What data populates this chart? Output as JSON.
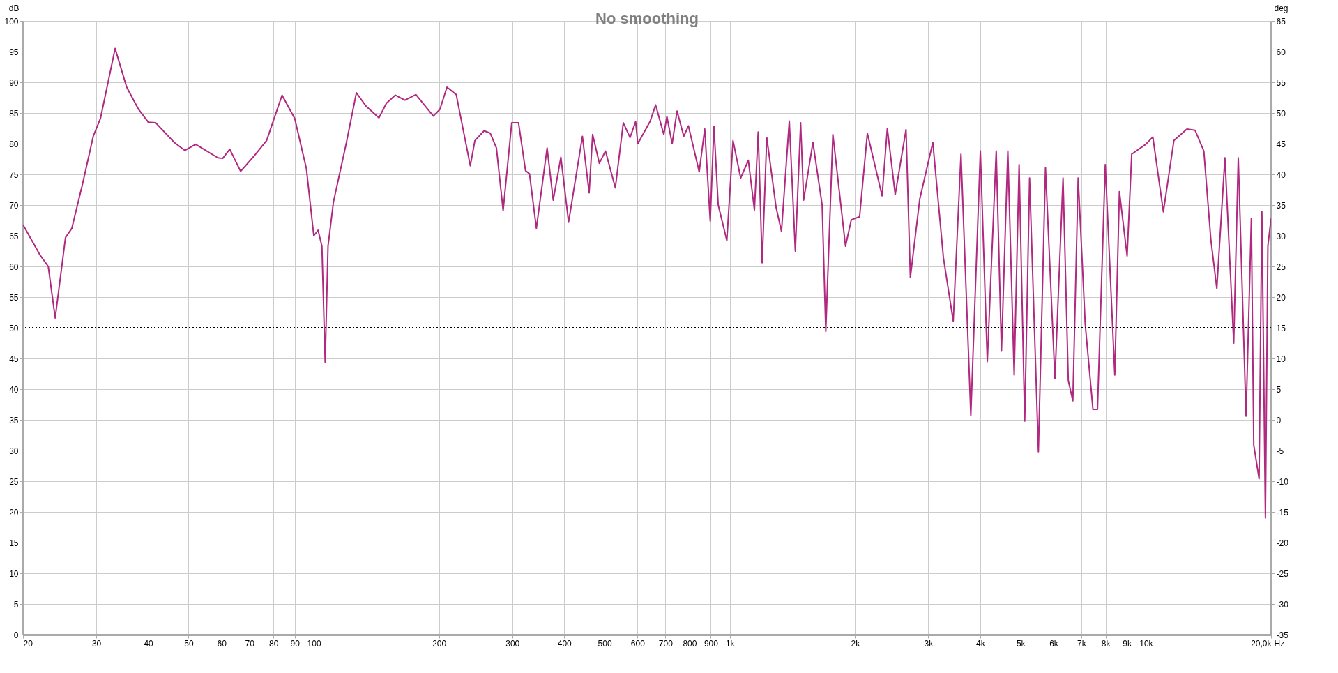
{
  "chart_data": {
    "type": "line",
    "title": "No smoothing",
    "xlabel": "Hz",
    "ylabel": "dB",
    "y2label": "deg",
    "log": "x",
    "grid": true,
    "xlim": [
      20,
      20000
    ],
    "xticks": [
      20,
      30,
      40,
      50,
      60,
      70,
      80,
      90,
      100,
      200,
      300,
      400,
      500,
      600,
      700,
      800,
      900,
      {
        "value": 1000,
        "label": "1k"
      },
      {
        "value": 2000,
        "label": "2k"
      },
      {
        "value": 3000,
        "label": "3k"
      },
      {
        "value": 4000,
        "label": "4k"
      },
      {
        "value": 5000,
        "label": "5k"
      },
      {
        "value": 6000,
        "label": "6k"
      },
      {
        "value": 7000,
        "label": "7k"
      },
      {
        "value": 8000,
        "label": "8k"
      },
      {
        "value": 9000,
        "label": "9k"
      },
      {
        "value": 10000,
        "label": "10k"
      },
      {
        "value": 20000,
        "label": "20,0k"
      }
    ],
    "ylim": [
      0,
      100
    ],
    "yticks": [
      0,
      5,
      10,
      15,
      20,
      25,
      30,
      35,
      40,
      45,
      50,
      55,
      60,
      65,
      70,
      75,
      80,
      85,
      90,
      95,
      100
    ],
    "y2lim": [
      -35,
      65
    ],
    "y2ticks": [
      -35,
      -30,
      -25,
      -20,
      -15,
      -10,
      -5,
      0,
      5,
      10,
      15,
      20,
      25,
      30,
      35,
      40,
      45,
      50,
      55,
      60,
      65
    ],
    "ref_lines": [
      {
        "axis": "y",
        "value": 50,
        "color": "#000000",
        "line_style": "dotted"
      }
    ],
    "series": [
      {
        "color": "#b0287f",
        "x": [
          20,
          22,
          23,
          23.9,
          25.3,
          26.2,
          27.8,
          29.5,
          30.7,
          33.3,
          35.5,
          37.9,
          40,
          41.7,
          46.2,
          49,
          52,
          58.8,
          60.4,
          62.8,
          66.7,
          72.1,
          77,
          83.9,
          90,
          96,
          100,
          102.4,
          104.6,
          106.5,
          108.2,
          111.5,
          119.8,
          126.6,
          133.6,
          143.4,
          149.5,
          157,
          165.6,
          176,
          193.8,
          201,
          209,
          220,
          237.8,
          243.9,
          256.7,
          265.6,
          274.8,
          285.2,
          299.1,
          310.6,
          322.8,
          330,
          342.8,
          363.8,
          376.3,
          392.6,
          409.7,
          442.3,
          459.1,
          468,
          485.8,
          502.5,
          530.7,
          554.6,
          575.7,
          593.8,
          600.9,
          643,
          663.2,
          694,
          706,
          726.8,
          746.7,
          775.2,
          795.3,
          844.2,
          870.4,
          897.3,
          915.9,
          937.9,
          983.8,
          1018,
          1062,
          1108,
          1146,
          1170,
          1196,
          1227,
          1292,
          1331,
          1390,
          1437,
          1480,
          1505,
          1584,
          1667,
          1701,
          1769,
          1897,
          1959,
          2051,
          2141,
          2323,
          2391,
          2498,
          2652,
          2716,
          2862,
          3076,
          3262,
          3444,
          3595,
          3796,
          4002,
          4159,
          4369,
          4498,
          4659,
          4825,
          4959,
          5116,
          5255,
          5518,
          5738,
          6047,
          6324,
          6511,
          6677,
          6876,
          7150,
          7463,
          7653,
          7989,
          8421,
          8639,
          9016,
          9248,
          9995,
          10395,
          11019,
          11680,
          12556,
          13130,
          13787,
          14330,
          14813,
          15493,
          16267,
          16681,
          17414,
          17932,
          18173,
          18716,
          19009,
          19384,
          19650,
          20000
        ],
        "values": [
          66.8,
          61.8,
          60,
          51.6,
          64.7,
          66.2,
          73.4,
          81.2,
          84.1,
          95.5,
          89.2,
          85.6,
          83.5,
          83.4,
          80.2,
          78.9,
          79.9,
          77.7,
          77.6,
          79.1,
          75.5,
          78.1,
          80.5,
          87.9,
          84.1,
          75.9,
          65,
          65.9,
          63.3,
          44.4,
          63.3,
          70.5,
          80.2,
          88.3,
          86.1,
          84.2,
          86.6,
          87.9,
          87.1,
          88,
          84.5,
          85.6,
          89.2,
          88,
          76.4,
          80.5,
          82.1,
          81.7,
          79.3,
          69.1,
          83.4,
          83.4,
          75.6,
          75.1,
          66.2,
          79.3,
          70.8,
          77.8,
          67.2,
          81.2,
          72,
          81.5,
          76.8,
          78.8,
          72.8,
          83.4,
          81,
          83.6,
          80,
          83.6,
          86.3,
          81.5,
          84.4,
          80,
          85.3,
          81.2,
          82.9,
          75.4,
          82.4,
          67.4,
          82.8,
          70,
          64.2,
          80.5,
          74.4,
          77.3,
          69.2,
          81.9,
          60.6,
          81,
          69.6,
          65.7,
          83.7,
          62.5,
          83.4,
          70.8,
          80.2,
          70,
          49.4,
          81.5,
          63.3,
          67.6,
          68.1,
          81.7,
          71.5,
          82.5,
          71.7,
          82.3,
          58.2,
          71,
          80.2,
          61.4,
          51.1,
          78.3,
          35.7,
          78.8,
          44.5,
          78.8,
          46.2,
          78.8,
          42.3,
          76.6,
          34.8,
          74.4,
          29.8,
          76.1,
          41.7,
          74.4,
          41.4,
          38.1,
          74.4,
          50.6,
          36.7,
          36.7,
          76.6,
          42.3,
          72.2,
          61.7,
          78.3,
          79.9,
          81.1,
          68.9,
          80.5,
          82.4,
          82.2,
          78.8,
          64.4,
          56.4,
          77.7,
          47.5,
          77.7,
          35.6,
          67.8,
          30.9,
          25.4,
          68.9,
          19,
          63.3,
          67.8
        ]
      }
    ]
  }
}
